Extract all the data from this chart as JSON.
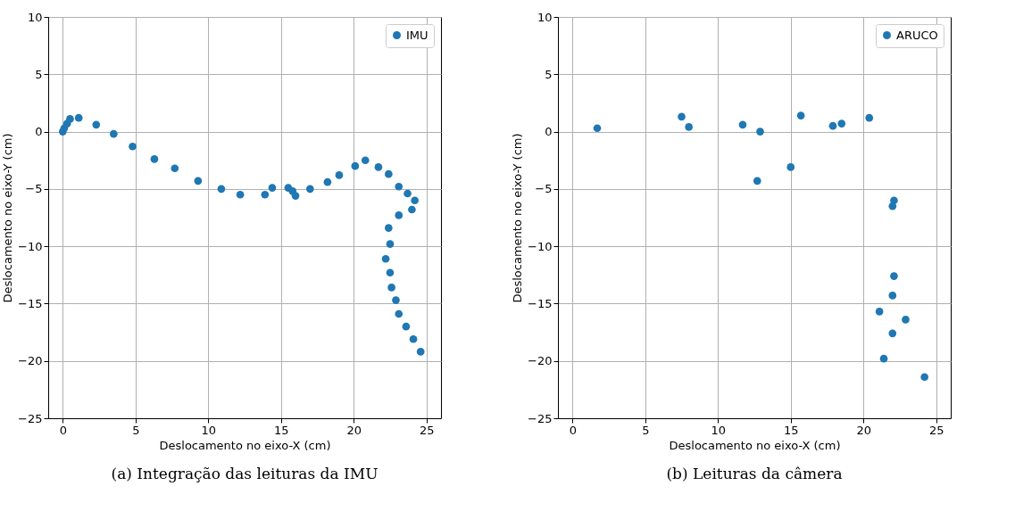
{
  "chart_data": [
    {
      "type": "scatter",
      "xlabel": "Deslocamento no eixo-X (cm)",
      "ylabel": "Deslocamento no eixo-Y (cm)",
      "annotations": [
        "(a) Integração das leituras da IMU"
      ],
      "xlim": [
        -1,
        26
      ],
      "ylim": [
        -25,
        10
      ],
      "xticks": [
        0,
        5,
        10,
        15,
        20,
        25
      ],
      "yticks": [
        -25,
        -20,
        -15,
        -10,
        -5,
        0,
        5,
        10
      ],
      "grid": true,
      "legend": "top right",
      "marker": "circle",
      "series": [
        {
          "name": "IMU",
          "color": "#1f77b4",
          "x": [
            0,
            0.1,
            0.3,
            0.5,
            1.1,
            2.3,
            3.5,
            4.8,
            6.3,
            7.7,
            9.3,
            10.9,
            12.2,
            13.9,
            14.4,
            15.5,
            15.8,
            16.0,
            17.0,
            18.2,
            19.0,
            20.1,
            20.8,
            21.7,
            22.4,
            23.1,
            23.7,
            24.2,
            24.0,
            23.1,
            22.4,
            22.5,
            22.2,
            22.5,
            22.6,
            22.9,
            23.1,
            23.6,
            24.1,
            24.6
          ],
          "values": [
            0,
            0.3,
            0.7,
            1.1,
            1.2,
            0.6,
            -0.2,
            -1.3,
            -2.4,
            -3.2,
            -4.3,
            -5.0,
            -5.5,
            -5.5,
            -4.9,
            -4.9,
            -5.2,
            -5.6,
            -5.0,
            -4.4,
            -3.8,
            -3.0,
            -2.5,
            -3.1,
            -3.7,
            -4.8,
            -5.4,
            -6.0,
            -6.8,
            -7.3,
            -8.4,
            -9.8,
            -11.1,
            -12.3,
            -13.6,
            -14.7,
            -15.9,
            -17.0,
            -18.1,
            -19.2
          ]
        }
      ]
    },
    {
      "type": "scatter",
      "xlabel": "Deslocamento no eixo-X (cm)",
      "ylabel": "Deslocamento no eixo-Y (cm)",
      "annotations": [
        "(b) Leituras da câmera"
      ],
      "xlim": [
        -1,
        26
      ],
      "ylim": [
        -25,
        10
      ],
      "xticks": [
        0,
        5,
        10,
        15,
        20,
        25
      ],
      "yticks": [
        -25,
        -20,
        -15,
        -10,
        -5,
        0,
        5,
        10
      ],
      "grid": true,
      "legend": "top right",
      "marker": "circle",
      "series": [
        {
          "name": "ARUCO",
          "color": "#1f77b4",
          "x": [
            1.7,
            7.5,
            8.0,
            11.7,
            12.9,
            12.7,
            15.0,
            15.7,
            17.9,
            18.5,
            20.4,
            22.1,
            22.0,
            22.1,
            22.0,
            21.1,
            22.9,
            22.0,
            21.4,
            24.2
          ],
          "values": [
            0.3,
            1.3,
            0.4,
            0.6,
            0.0,
            -4.3,
            -3.1,
            1.4,
            0.5,
            0.7,
            1.2,
            -6.0,
            -6.5,
            -12.6,
            -14.3,
            -15.7,
            -16.4,
            -17.6,
            -19.8,
            -21.4
          ]
        }
      ]
    }
  ]
}
